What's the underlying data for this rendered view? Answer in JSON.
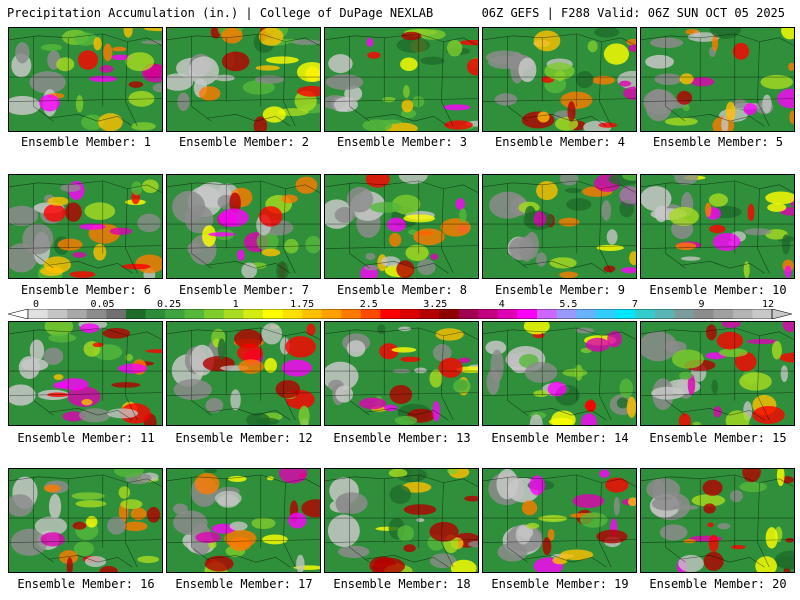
{
  "header": {
    "left_title": "Precipitation Accumulation (in.) | College of DuPage NEXLAB",
    "right_title": "06Z GEFS | F288 Valid: 06Z SUN OCT 05 2025"
  },
  "panels": [
    {
      "label": "Ensemble Member: 1"
    },
    {
      "label": "Ensemble Member: 2"
    },
    {
      "label": "Ensemble Member: 3"
    },
    {
      "label": "Ensemble Member: 4"
    },
    {
      "label": "Ensemble Member: 5"
    },
    {
      "label": "Ensemble Member: 6"
    },
    {
      "label": "Ensemble Member: 7"
    },
    {
      "label": "Ensemble Member: 8"
    },
    {
      "label": "Ensemble Member: 9"
    },
    {
      "label": "Ensemble Member: 10"
    },
    {
      "label": "Ensemble Member: 11"
    },
    {
      "label": "Ensemble Member: 12"
    },
    {
      "label": "Ensemble Member: 13"
    },
    {
      "label": "Ensemble Member: 14"
    },
    {
      "label": "Ensemble Member: 15"
    },
    {
      "label": "Ensemble Member: 16"
    },
    {
      "label": "Ensemble Member: 17"
    },
    {
      "label": "Ensemble Member: 18"
    },
    {
      "label": "Ensemble Member: 19"
    },
    {
      "label": "Ensemble Member: 20"
    }
  ],
  "colorbar": {
    "ticks": [
      "0",
      "0.05",
      "0.25",
      "1",
      "1.75",
      "2.5",
      "3.25",
      "4",
      "5.5",
      "7",
      "9",
      "12"
    ],
    "colors": [
      "#e0e0e0",
      "#c4c4c4",
      "#a8a8a8",
      "#8c8c8c",
      "#707070",
      "#1f6b2a",
      "#2e8b3a",
      "#3fa33f",
      "#55b83b",
      "#7fcc2e",
      "#a8dc22",
      "#d4ec14",
      "#ffff00",
      "#ffe000",
      "#ffc000",
      "#ffa000",
      "#ff7a00",
      "#ff4a00",
      "#ff0000",
      "#dc0000",
      "#b40000",
      "#8c0000",
      "#a00050",
      "#c00080",
      "#e000b4",
      "#ff00ff",
      "#cc66ff",
      "#9999ff",
      "#66b3ff",
      "#33ccff",
      "#00e6ff",
      "#33cccc",
      "#5ab4b4",
      "#7a9c9c",
      "#8c8c8c",
      "#a0a0a0",
      "#b4b4b4",
      "#c8c8c8"
    ]
  }
}
